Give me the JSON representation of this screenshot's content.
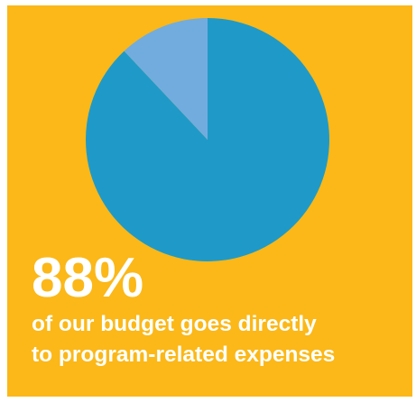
{
  "colors": {
    "background": "#fbb818",
    "main_slice": "#1f9ac8",
    "minor_slice": "#72acdf",
    "text": "#ffffff"
  },
  "headline": "88%",
  "caption_lines": [
    "of our budget goes directly",
    "to program-related expenses"
  ],
  "chart_data": {
    "type": "pie",
    "values": [
      88,
      12
    ],
    "title": "",
    "legend": "none"
  }
}
